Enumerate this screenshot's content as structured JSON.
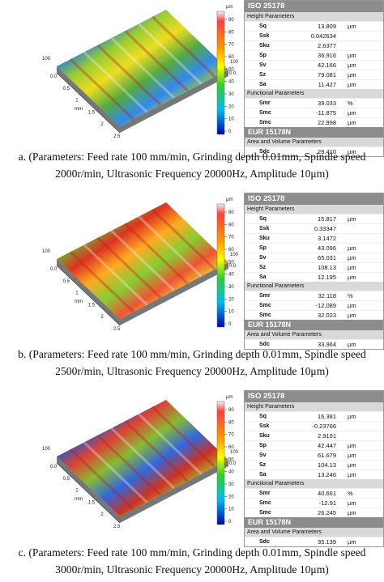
{
  "panels": [
    {
      "unit": "µm",
      "colorbar_ticks": [
        "90",
        "80",
        "70",
        "60",
        "50",
        "40",
        "30",
        "20",
        "10",
        "0"
      ],
      "axis_labels": [
        "100",
        "0.0",
        "0.5",
        "1",
        "1.5",
        "2",
        "2.5",
        "mm",
        "100",
        "0.0"
      ],
      "table": {
        "iso_title": "ISO 25178",
        "height_title": "Height Parameters",
        "height_rows": [
          [
            "Sq",
            "13.809",
            "µm"
          ],
          [
            "Ssk",
            "0.042634"
          ],
          [
            "Sku",
            "2.6377"
          ],
          [
            "Sp",
            "36.916",
            "µm"
          ],
          [
            "Sv",
            "42.166",
            "µm"
          ],
          [
            "Sz",
            "79.081",
            "µm"
          ],
          [
            "Sa",
            "11.427",
            "µm"
          ]
        ],
        "functional_title": "Functional Parameters",
        "functional_rows": [
          [
            "Smr",
            "39.033",
            "%"
          ],
          [
            "Smc",
            "-11.875",
            "µm"
          ],
          [
            "Smc",
            "22.998",
            "µm"
          ]
        ],
        "eur_title": "EUR 15178N",
        "area_title": "Area and Volume Parameters",
        "area_rows": [
          [
            "Sdc",
            "29.410",
            "µm"
          ]
        ]
      },
      "caption": [
        "a. (Parameters: Feed rate 100 mm/min, Grinding depth 0.01mm, Spindle speed",
        "2000r/min, Ultrasonic Frequency 20000Hz, Amplitude 10μm)"
      ]
    },
    {
      "unit": "µm",
      "colorbar_ticks": [
        "90",
        "80",
        "70",
        "60",
        "50",
        "40",
        "30",
        "20",
        "10",
        "0"
      ],
      "axis_labels": [
        "100",
        "0.0",
        "0.5",
        "1",
        "1.5",
        "2",
        "2.5",
        "mm",
        "100",
        "0.0"
      ],
      "table": {
        "iso_title": "ISO 25178",
        "height_title": "Height Parameters",
        "height_rows": [
          [
            "Sq",
            "15.817",
            "µm"
          ],
          [
            "Ssk",
            "0.33347"
          ],
          [
            "Sku",
            "3.1472"
          ],
          [
            "Sp",
            "43.096",
            "µm"
          ],
          [
            "Sv",
            "65.031",
            "µm"
          ],
          [
            "Sz",
            "108.13",
            "µm"
          ],
          [
            "Sa",
            "12.195",
            "µm"
          ]
        ],
        "functional_title": "Functional Parameters",
        "functional_rows": [
          [
            "Smr",
            "32.118",
            "%"
          ],
          [
            "Smc",
            "-12.089",
            "µm"
          ],
          [
            "Smc",
            "32.023",
            "µm"
          ]
        ],
        "eur_title": "EUR 15178N",
        "area_title": "Area and Volume Parameters",
        "area_rows": [
          [
            "Sdc",
            "33.964",
            "µm"
          ]
        ]
      },
      "caption": [
        "b. (Parameters: Feed rate 100 mm/min, Grinding depth 0.01mm, Spindle speed",
        "2500r/min, Ultrasonic Frequency 20000Hz, Amplitude 10μm)"
      ]
    },
    {
      "unit": "µm",
      "colorbar_ticks": [
        "90",
        "80",
        "70",
        "60",
        "50",
        "40",
        "30",
        "20",
        "10",
        "0"
      ],
      "axis_labels": [
        "100",
        "0.0",
        "0.5",
        "1",
        "1.5",
        "2",
        "2.5",
        "mm",
        "100",
        "0.0"
      ],
      "table": {
        "iso_title": "ISO 25178",
        "height_title": "Height Parameters",
        "height_rows": [
          [
            "Sq",
            "16.381",
            "µm"
          ],
          [
            "Ssk",
            "-0.23766"
          ],
          [
            "Sku",
            "2.9191"
          ],
          [
            "Sp",
            "42.447",
            "µm"
          ],
          [
            "Sv",
            "61.679",
            "µm"
          ],
          [
            "Sz",
            "104.13",
            "µm"
          ],
          [
            "Sa",
            "13.246",
            "µm"
          ]
        ],
        "functional_title": "Functional Parameters",
        "functional_rows": [
          [
            "Smr",
            "40.661",
            "%"
          ],
          [
            "Smc",
            "-12.91",
            "µm"
          ],
          [
            "Smc",
            "26.245",
            "µm"
          ]
        ],
        "eur_title": "EUR 15178N",
        "area_title": "Area and Volume Parameters",
        "area_rows": [
          [
            "Sdc",
            "35.139",
            "µm"
          ]
        ]
      },
      "caption": [
        "c. (Parameters: Feed rate 100 mm/min, Grinding depth 0.01mm, Spindle speed",
        "3000r/min, Ultrasonic Frequency 20000Hz, Amplitude 10μm)"
      ]
    }
  ]
}
